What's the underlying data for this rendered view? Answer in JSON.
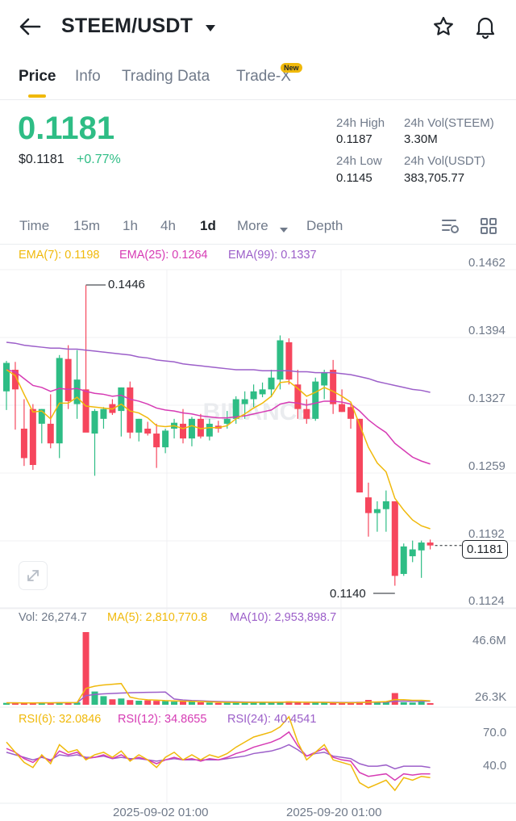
{
  "header": {
    "title": "STEEM/USDT"
  },
  "tabs": [
    {
      "label": "Price"
    },
    {
      "label": "Info"
    },
    {
      "label": "Trading Data"
    },
    {
      "label": "Trade-X",
      "badge": "New"
    }
  ],
  "ticker": {
    "last_price": "0.1181",
    "usd_price": "$0.1181",
    "change": "+0.77%",
    "high_label": "24h High",
    "high_value": "0.1187",
    "low_label": "24h Low",
    "low_value": "0.1145",
    "vol_base_label": "24h Vol(STEEM)",
    "vol_base_value": "3.30M",
    "vol_quote_label": "24h Vol(USDT)",
    "vol_quote_value": "383,705.77"
  },
  "timeframes": [
    "Time",
    "15m",
    "1h",
    "4h",
    "1d",
    "More",
    "Depth"
  ],
  "timeframe_active": "1d",
  "indicators": {
    "ema7": "EMA(7): 0.1198",
    "ema25": "EMA(25): 0.1264",
    "ema99": "EMA(99): 0.1337",
    "vol": "Vol: 26,274.7",
    "ma5": "MA(5): 2,810,770.8",
    "ma10": "MA(10): 2,953,898.7",
    "rsi6": "RSI(6): 32.0846",
    "rsi12": "RSI(12): 34.8655",
    "rsi24": "RSI(24): 40.4541"
  },
  "price_axis": [
    "0.1462",
    "0.1394",
    "0.1327",
    "0.1259",
    "0.1192",
    "0.1124"
  ],
  "current_price_tag": "0.1181",
  "high_marker": "0.1446",
  "low_marker": "0.1140",
  "volume_axis": [
    "46.6M",
    "26.3K"
  ],
  "rsi_axis": [
    "70.0",
    "40.0"
  ],
  "date_axis": [
    "2025-09-02 01:00",
    "2025-09-20 01:00"
  ],
  "watermark": "BINANCE",
  "colors": {
    "up": "#2ebd85",
    "down": "#f6465d",
    "ema7": "#f0b90b",
    "ema25": "#d63bb4",
    "ema99": "#9c5fc9",
    "accent": "#f0b90b"
  },
  "chart_data": {
    "type": "candlestick",
    "ylim": [
      0.1124,
      0.1462
    ],
    "candles": [
      {
        "o": 0.1338,
        "h": 0.1369,
        "l": 0.1319,
        "c": 0.1367
      },
      {
        "o": 0.136,
        "h": 0.1368,
        "l": 0.1299,
        "c": 0.134
      },
      {
        "o": 0.13,
        "h": 0.133,
        "l": 0.1262,
        "c": 0.127
      },
      {
        "o": 0.132,
        "h": 0.1325,
        "l": 0.1258,
        "c": 0.1263
      },
      {
        "o": 0.1305,
        "h": 0.132,
        "l": 0.1285,
        "c": 0.132
      },
      {
        "o": 0.1305,
        "h": 0.1335,
        "l": 0.128,
        "c": 0.1285
      },
      {
        "o": 0.1285,
        "h": 0.1375,
        "l": 0.127,
        "c": 0.1372
      },
      {
        "o": 0.1371,
        "h": 0.1385,
        "l": 0.132,
        "c": 0.1328
      },
      {
        "o": 0.1325,
        "h": 0.138,
        "l": 0.131,
        "c": 0.135
      },
      {
        "o": 0.134,
        "h": 0.1446,
        "l": 0.1298,
        "c": 0.1296
      },
      {
        "o": 0.1295,
        "h": 0.132,
        "l": 0.1252,
        "c": 0.1318
      },
      {
        "o": 0.131,
        "h": 0.1322,
        "l": 0.13,
        "c": 0.132
      },
      {
        "o": 0.1325,
        "h": 0.133,
        "l": 0.1314,
        "c": 0.1316
      },
      {
        "o": 0.1318,
        "h": 0.1342,
        "l": 0.1292,
        "c": 0.1342
      },
      {
        "o": 0.1342,
        "h": 0.1348,
        "l": 0.129,
        "c": 0.1296
      },
      {
        "o": 0.1296,
        "h": 0.131,
        "l": 0.1287,
        "c": 0.131
      },
      {
        "o": 0.13,
        "h": 0.1307,
        "l": 0.1293,
        "c": 0.1295
      },
      {
        "o": 0.1295,
        "h": 0.1305,
        "l": 0.126,
        "c": 0.1281
      },
      {
        "o": 0.1281,
        "h": 0.13,
        "l": 0.1275,
        "c": 0.1298
      },
      {
        "o": 0.13,
        "h": 0.131,
        "l": 0.129,
        "c": 0.1306
      },
      {
        "o": 0.1305,
        "h": 0.132,
        "l": 0.1285,
        "c": 0.129
      },
      {
        "o": 0.129,
        "h": 0.1312,
        "l": 0.1282,
        "c": 0.131
      },
      {
        "o": 0.131,
        "h": 0.1315,
        "l": 0.129,
        "c": 0.1292
      },
      {
        "o": 0.1292,
        "h": 0.131,
        "l": 0.1288,
        "c": 0.1305
      },
      {
        "o": 0.1303,
        "h": 0.1308,
        "l": 0.1296,
        "c": 0.13
      },
      {
        "o": 0.1305,
        "h": 0.1318,
        "l": 0.13,
        "c": 0.131
      },
      {
        "o": 0.131,
        "h": 0.1333,
        "l": 0.1305,
        "c": 0.133
      },
      {
        "o": 0.1325,
        "h": 0.1338,
        "l": 0.131,
        "c": 0.133
      },
      {
        "o": 0.133,
        "h": 0.1345,
        "l": 0.1322,
        "c": 0.1338
      },
      {
        "o": 0.1335,
        "h": 0.1347,
        "l": 0.1332,
        "c": 0.134
      },
      {
        "o": 0.134,
        "h": 0.136,
        "l": 0.1332,
        "c": 0.1352
      },
      {
        "o": 0.135,
        "h": 0.1395,
        "l": 0.134,
        "c": 0.139
      },
      {
        "o": 0.1388,
        "h": 0.1392,
        "l": 0.1345,
        "c": 0.135
      },
      {
        "o": 0.1345,
        "h": 0.136,
        "l": 0.131,
        "c": 0.132
      },
      {
        "o": 0.132,
        "h": 0.133,
        "l": 0.1305,
        "c": 0.131
      },
      {
        "o": 0.131,
        "h": 0.1352,
        "l": 0.1308,
        "c": 0.1348
      },
      {
        "o": 0.1344,
        "h": 0.136,
        "l": 0.133,
        "c": 0.1357
      },
      {
        "o": 0.136,
        "h": 0.137,
        "l": 0.1315,
        "c": 0.1325
      },
      {
        "o": 0.1325,
        "h": 0.134,
        "l": 0.1317,
        "c": 0.1317
      },
      {
        "o": 0.1322,
        "h": 0.1325,
        "l": 0.13,
        "c": 0.131
      },
      {
        "o": 0.131,
        "h": 0.131,
        "l": 0.1235,
        "c": 0.1235
      },
      {
        "o": 0.123,
        "h": 0.1245,
        "l": 0.119,
        "c": 0.1214
      },
      {
        "o": 0.1214,
        "h": 0.1226,
        "l": 0.1195,
        "c": 0.1218
      },
      {
        "o": 0.1218,
        "h": 0.1237,
        "l": 0.1195,
        "c": 0.1226
      },
      {
        "o": 0.1226,
        "h": 0.1226,
        "l": 0.114,
        "c": 0.115
      },
      {
        "o": 0.1152,
        "h": 0.1183,
        "l": 0.115,
        "c": 0.118
      },
      {
        "o": 0.117,
        "h": 0.1186,
        "l": 0.1164,
        "c": 0.1177
      },
      {
        "o": 0.1176,
        "h": 0.1186,
        "l": 0.1148,
        "c": 0.1184
      },
      {
        "o": 0.1184,
        "h": 0.1187,
        "l": 0.1177,
        "c": 0.1181
      }
    ],
    "ema7": [
      0.136,
      0.1354,
      0.1335,
      0.1317,
      0.1318,
      0.131,
      0.1326,
      0.1326,
      0.1332,
      0.1323,
      0.1322,
      0.1321,
      0.132,
      0.1325,
      0.1318,
      0.1316,
      0.1311,
      0.1303,
      0.1302,
      0.1303,
      0.13,
      0.1303,
      0.13,
      0.1301,
      0.1301,
      0.1303,
      0.131,
      0.1315,
      0.1321,
      0.1326,
      0.1333,
      0.1347,
      0.1348,
      0.1341,
      0.1333,
      0.1337,
      0.1342,
      0.1338,
      0.1333,
      0.1327,
      0.1304,
      0.1281,
      0.1265,
      0.1256,
      0.1229,
      0.1217,
      0.1207,
      0.1201,
      0.1198
    ],
    "ema25": [
      0.136,
      0.1358,
      0.1351,
      0.1344,
      0.1342,
      0.1338,
      0.1341,
      0.134,
      0.1341,
      0.1338,
      0.1336,
      0.1335,
      0.1333,
      0.1334,
      0.133,
      0.1328,
      0.1325,
      0.1321,
      0.1319,
      0.1318,
      0.1316,
      0.1315,
      0.1313,
      0.1312,
      0.1311,
      0.1311,
      0.1312,
      0.1313,
      0.1315,
      0.1317,
      0.1319,
      0.1325,
      0.1327,
      0.1326,
      0.1324,
      0.1326,
      0.1328,
      0.1328,
      0.1327,
      0.1325,
      0.1318,
      0.1309,
      0.1302,
      0.1296,
      0.1285,
      0.1278,
      0.1271,
      0.1267,
      0.1264
    ],
    "ema99": [
      0.1388,
      0.1387,
      0.1385,
      0.1384,
      0.1383,
      0.1382,
      0.1382,
      0.1381,
      0.1381,
      0.138,
      0.1379,
      0.1378,
      0.1377,
      0.1376,
      0.1375,
      0.1373,
      0.1372,
      0.137,
      0.1369,
      0.1368,
      0.1366,
      0.1365,
      0.1364,
      0.1363,
      0.1362,
      0.1361,
      0.136,
      0.136,
      0.136,
      0.1359,
      0.1359,
      0.1359,
      0.1359,
      0.1358,
      0.1358,
      0.1357,
      0.1357,
      0.1357,
      0.1356,
      0.1355,
      0.1353,
      0.1351,
      0.1348,
      0.1346,
      0.1344,
      0.1342,
      0.134,
      0.1339,
      0.1337
    ],
    "volume": [
      1.2,
      1.3,
      1.0,
      1.2,
      1.4,
      1.3,
      1.6,
      1.4,
      1.5,
      46.6,
      8.5,
      5.5,
      3.5,
      4.0,
      3.0,
      2.6,
      2.8,
      2.5,
      2.3,
      2.0,
      2.2,
      2.1,
      1.6,
      1.4,
      1.2,
      1.4,
      1.8,
      1.5,
      1.6,
      1.7,
      1.4,
      2.0,
      2.2,
      1.3,
      1.2,
      1.5,
      1.7,
      1.1,
      1.0,
      1.2,
      1.9,
      3.1,
      2.0,
      1.9,
      7.5,
      1.6,
      1.4,
      2.0,
      0.03
    ],
    "volume_ylim": [
      0,
      46.6
    ],
    "rsi6": [
      60,
      52,
      44,
      40,
      50,
      43,
      58,
      52,
      54,
      46,
      50,
      52,
      48,
      53,
      45,
      50,
      46,
      40,
      48,
      52,
      46,
      50,
      46,
      50,
      48,
      51,
      56,
      60,
      64,
      66,
      68,
      72,
      80,
      60,
      46,
      52,
      58,
      46,
      44,
      42,
      28,
      24,
      27,
      30,
      22,
      32,
      30,
      33,
      32
    ],
    "rsi12": [
      55,
      52,
      47,
      44,
      49,
      45,
      53,
      50,
      52,
      47,
      48,
      50,
      47,
      50,
      46,
      48,
      46,
      43,
      46,
      48,
      46,
      47,
      45,
      47,
      46,
      48,
      51,
      53,
      56,
      58,
      60,
      63,
      68,
      57,
      49,
      52,
      55,
      48,
      46,
      45,
      36,
      33,
      34,
      35,
      30,
      35,
      34,
      35,
      35
    ],
    "rsi24": [
      52,
      50,
      48,
      46,
      48,
      46,
      50,
      49,
      50,
      48,
      48,
      49,
      47,
      48,
      47,
      47,
      46,
      45,
      46,
      47,
      46,
      46,
      46,
      46,
      46,
      47,
      48,
      49,
      51,
      52,
      53,
      55,
      58,
      54,
      49,
      51,
      52,
      49,
      48,
      47,
      43,
      41,
      41,
      42,
      39,
      41,
      41,
      41,
      40
    ],
    "rsi_ylim": [
      0,
      100
    ]
  }
}
